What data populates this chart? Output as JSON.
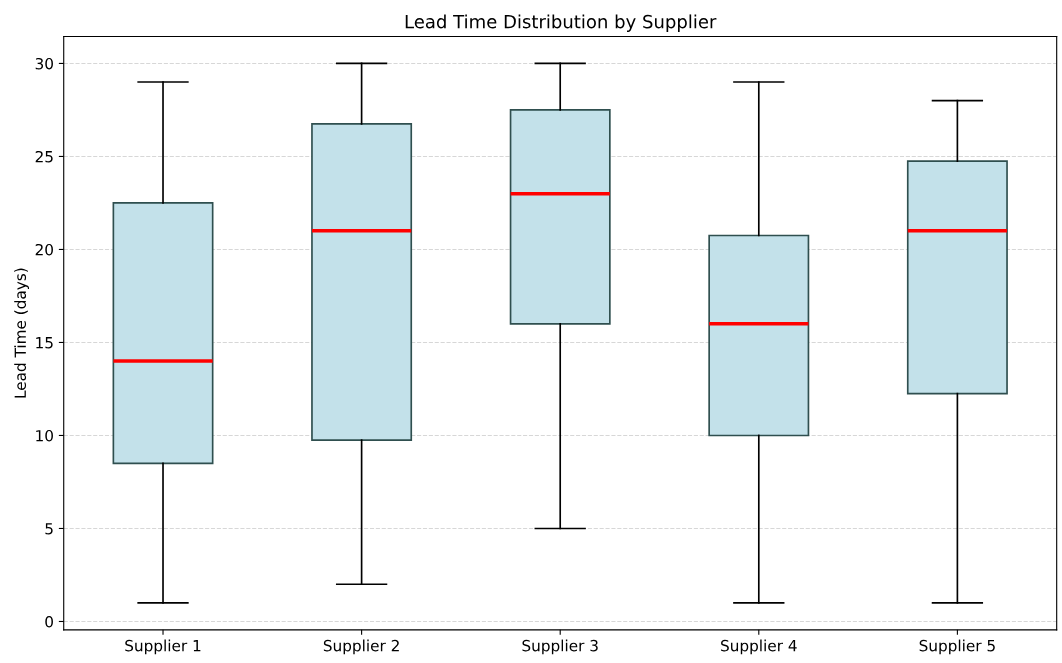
{
  "chart_data": {
    "type": "box",
    "title": "Lead Time Distribution by Supplier",
    "ylabel": "Lead Time (days)",
    "categories": [
      "Supplier 1",
      "Supplier 2",
      "Supplier 3",
      "Supplier 4",
      "Supplier 5"
    ],
    "series": [
      {
        "color": "#c3e1ea",
        "boxes": [
          {
            "low": 1,
            "q1": 8.5,
            "median": 14,
            "q3": 22.5,
            "high": 29
          },
          {
            "low": 2,
            "q1": 9.75,
            "median": 21,
            "q3": 26.75,
            "high": 30
          },
          {
            "low": 5,
            "q1": 16,
            "median": 23,
            "q3": 27.5,
            "high": 30
          },
          {
            "low": 1,
            "q1": 10,
            "median": 16,
            "q3": 20.75,
            "high": 29
          },
          {
            "low": 1,
            "q1": 12.25,
            "median": 21,
            "q3": 24.75,
            "high": 28
          }
        ]
      }
    ],
    "ylim": [
      -0.45,
      31.45
    ],
    "yticks": [
      0,
      5,
      10,
      15,
      20,
      25,
      30
    ],
    "grid": "y"
  }
}
